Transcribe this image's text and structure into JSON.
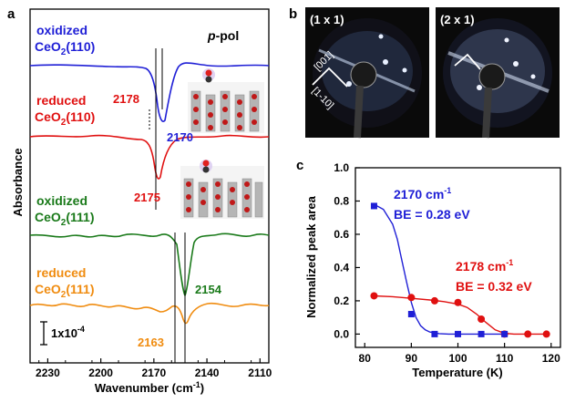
{
  "panels": {
    "a": "a",
    "b": "b",
    "c": "c"
  },
  "ir_panel": {
    "polarization_label": "p-pol",
    "polarization_prefix": "p",
    "polarization_suffix": "-pol",
    "ylabel": "Absorbance",
    "xlabel": "Wavenumber (cm",
    "xlabel_sup": "-1",
    "xlabel_end": ")",
    "x_ticks": [
      "2230",
      "2200",
      "2170",
      "2140",
      "2110"
    ],
    "scale_bar_label": "1x10",
    "scale_bar_exp": "-4",
    "traces": [
      {
        "line1": "oxidized",
        "line2": "CeO",
        "sub": "2",
        "facet": "(110)",
        "color": "#1f1fd6",
        "peak": "2170",
        "peak_color": "#1f1fd6"
      },
      {
        "line1": "reduced",
        "line2": "CeO",
        "sub": "2",
        "facet": "(110)",
        "color": "#e01010",
        "peak": "2175",
        "peak_color": "#e01010",
        "extra_peak": "2178"
      },
      {
        "line1": "oxidized",
        "line2": "CeO",
        "sub": "2",
        "facet": "(111)",
        "color": "#1a7a1a",
        "peak": "2154",
        "peak_color": "#1a7a1a"
      },
      {
        "line1": "reduced",
        "line2": "CeO",
        "sub": "2",
        "facet": "(111)",
        "color": "#f08c10",
        "peak": "2163",
        "peak_color": "#f08c10"
      }
    ]
  },
  "leed": {
    "left_label": "(1 x 1)",
    "right_label": "(2 x 1)",
    "dir1": "[001]",
    "dir2": "[1-10]"
  },
  "chart_data": [
    {
      "type": "line",
      "title": "",
      "xlabel": "Wavenumber (cm-1)",
      "ylabel": "Absorbance",
      "x_ticks": [
        2230,
        2200,
        2170,
        2140,
        2110
      ],
      "xlim": [
        2240,
        2105
      ],
      "series": [
        {
          "name": "oxidized CeO2(110)",
          "peak_x": 2170
        },
        {
          "name": "reduced CeO2(110)",
          "peak_x": 2175
        },
        {
          "name": "oxidized CeO2(111)",
          "peak_x": 2154
        },
        {
          "name": "reduced CeO2(111)",
          "peak_x": 2163
        }
      ]
    },
    {
      "type": "scatter",
      "title": "",
      "xlabel": "Temperature (K)",
      "ylabel": "Normalized peak area",
      "xlim": [
        78,
        122
      ],
      "ylim": [
        -0.08,
        1.0
      ],
      "x_ticks": [
        80,
        90,
        100,
        110,
        120
      ],
      "y_ticks": [
        0.0,
        0.2,
        0.4,
        0.6,
        0.8,
        1.0
      ],
      "series": [
        {
          "name": "2170 cm-1",
          "annotation_line1": "2170 cm",
          "annotation_sup": "-1",
          "annotation_line2": "BE = 0.28 eV",
          "color": "#1f1fd6",
          "marker": "square",
          "x": [
            82,
            90,
            95,
            100,
            105,
            110
          ],
          "y": [
            0.77,
            0.12,
            0.0,
            0.0,
            0.0,
            0.0
          ],
          "fit_x": [
            82,
            84,
            86,
            87,
            88,
            89,
            90,
            91,
            92,
            93,
            94,
            96,
            98,
            100,
            105,
            110
          ],
          "fit_y": [
            0.78,
            0.75,
            0.66,
            0.57,
            0.44,
            0.31,
            0.19,
            0.1,
            0.05,
            0.025,
            0.012,
            0.003,
            0.0,
            0.0,
            0.0,
            0.0
          ]
        },
        {
          "name": "2178 cm-1",
          "annotation_line1": "2178 cm",
          "annotation_sup": "-1",
          "annotation_line2": "BE = 0.32 eV",
          "color": "#e01010",
          "marker": "circle",
          "x": [
            82,
            90,
            95,
            100,
            105,
            110,
            115,
            119
          ],
          "y": [
            0.23,
            0.22,
            0.2,
            0.19,
            0.09,
            0.0,
            0.0,
            0.0
          ],
          "fit_x": [
            82,
            86,
            90,
            94,
            97,
            100,
            102,
            104,
            106,
            108,
            110,
            112,
            119
          ],
          "fit_y": [
            0.23,
            0.225,
            0.215,
            0.205,
            0.195,
            0.18,
            0.16,
            0.12,
            0.07,
            0.025,
            0.005,
            0.0,
            0.0
          ]
        }
      ]
    }
  ]
}
